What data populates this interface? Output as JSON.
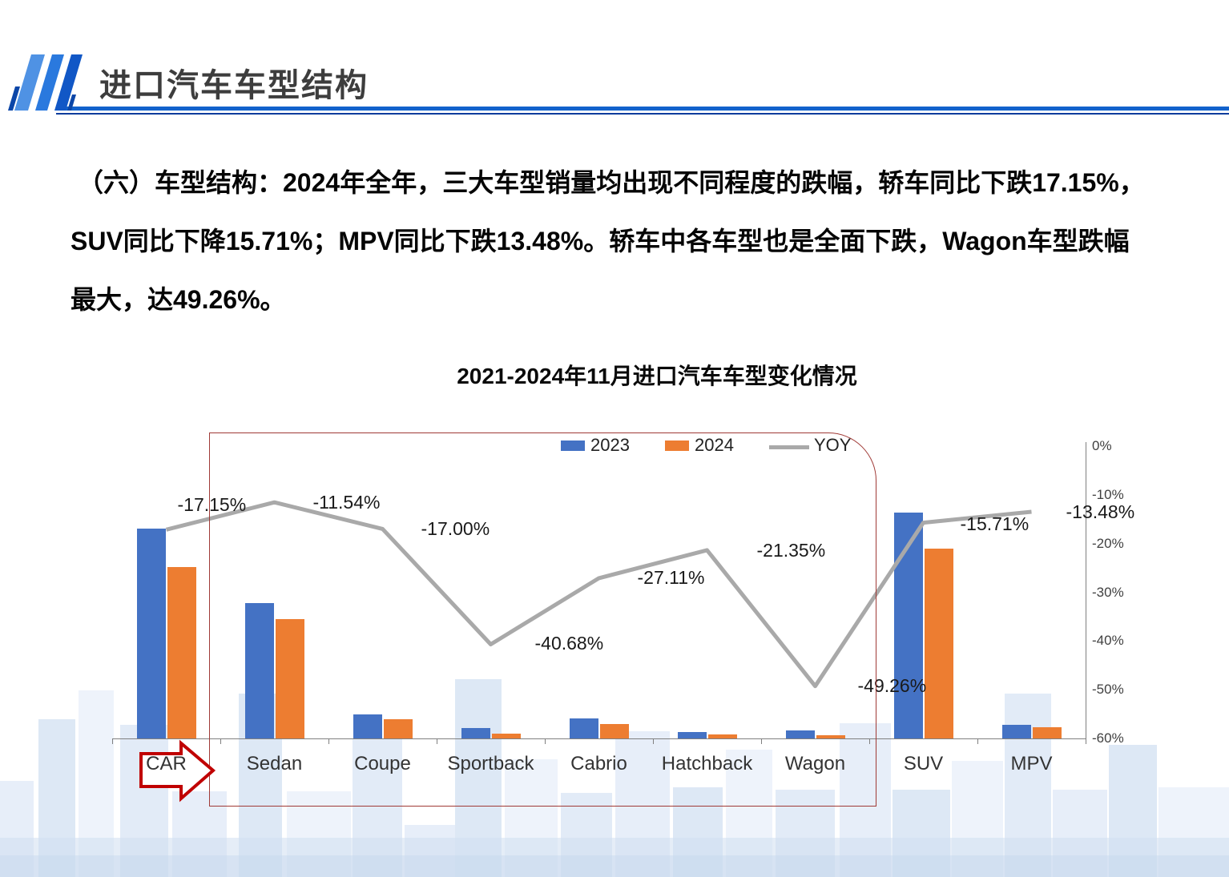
{
  "header": {
    "title": "进口汽车车型结构"
  },
  "body_text": {
    "line1": "（六）车型结构：2024年全年，三大车型销量均出现不同程度的跌幅，轿车同比下跌17.15%，",
    "line2": "SUV同比下降15.71%；MPV同比下跌13.48%。轿车中各车型也是全面下跌，Wagon车型跌幅",
    "line3": "最大，达49.26%。"
  },
  "chart_data": {
    "type": "bar",
    "subtype": "grouped bars with YOY line on secondary right axis",
    "title": "2021-2024年11月进口汽车车型变化情况",
    "categories": [
      "CAR",
      "Sedan",
      "Coupe",
      "Sportback",
      "Cabrio",
      "Hatchback",
      "Wagon",
      "SUV",
      "MPV"
    ],
    "series": [
      {
        "name": "2023",
        "type": "bar",
        "color": "#4472C4",
        "values": [
          93,
          60,
          10.6,
          4.6,
          8.9,
          2.8,
          3.5,
          100,
          6
        ],
        "note": "sales volume, relative index (SUV 2023 = 100); absolute values are not labeled in the chart"
      },
      {
        "name": "2024",
        "type": "bar",
        "color": "#ED7D31",
        "values": [
          76,
          53,
          8.5,
          2.1,
          6.4,
          1.8,
          1.4,
          84,
          5
        ],
        "note": "sales volume, relative index (SUV 2023 = 100); absolute values are not labeled in the chart"
      },
      {
        "name": "YOY",
        "type": "line",
        "color": "#A9A9A9",
        "values": [
          -17.15,
          -11.54,
          -17.0,
          -40.68,
          -27.11,
          -21.35,
          -49.26,
          -15.71,
          -13.48
        ]
      }
    ],
    "yoy_labels": [
      "-17.15%",
      "-11.54%",
      "-17.00%",
      "-40.68%",
      "-27.11%",
      "-21.35%",
      "-49.26%",
      "-15.71%",
      "-13.48%"
    ],
    "right_axis": {
      "ticks": [
        "0%",
        "-10%",
        "-20%",
        "-30%",
        "-40%",
        "-50%",
        "-60%"
      ],
      "min": -60,
      "max": 0
    },
    "legend": {
      "position": "top-center",
      "entries": [
        "2023",
        "2024",
        "YOY"
      ]
    },
    "grid": "off",
    "annotations": {
      "arrow_target": "CAR",
      "box_range": "Sedan to Wagon"
    }
  },
  "colors": {
    "accent_blue": "#1262cc",
    "accent_blue_dark": "#0a3c9c",
    "bar_2023": "#4472C4",
    "bar_2024": "#ED7D31",
    "yoy_line": "#A9A9A9",
    "highlight_arrow_red": "#C00000",
    "highlight_box_red": "#A03A36"
  }
}
